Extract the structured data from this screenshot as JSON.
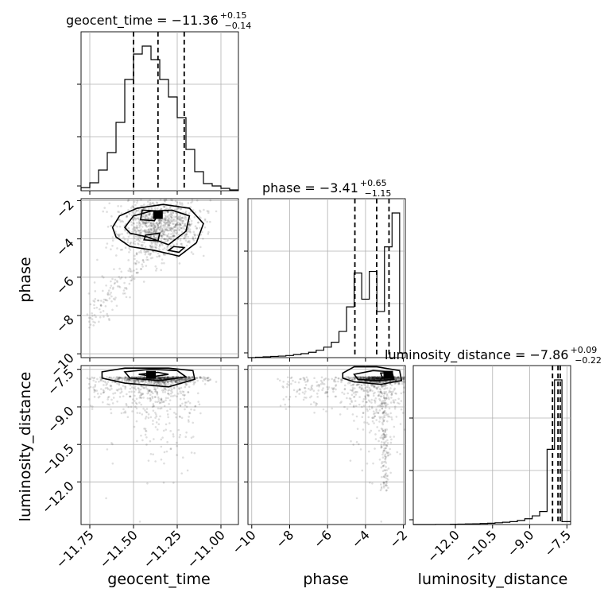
{
  "titles": {
    "geocent_time": {
      "name": "geocent_time",
      "median": "−11.36",
      "plus": "+0.15",
      "minus": "−0.14"
    },
    "phase": {
      "name": "phase",
      "median": "−3.41",
      "plus": "+0.65",
      "minus": "−1.15"
    },
    "luminosity_distance": {
      "name": "luminosity_distance",
      "median": "−7.86",
      "plus": "+0.09",
      "minus": "−0.22"
    }
  },
  "axis_labels": {
    "x_geocent_time": "geocent_time",
    "x_phase": "phase",
    "x_luminosity_distance": "luminosity_distance",
    "y_phase": "phase",
    "y_luminosity_distance": "luminosity_distance"
  },
  "chart_data": {
    "type": "corner",
    "parameters": [
      "geocent_time",
      "phase",
      "luminosity_distance"
    ],
    "ranges": {
      "geocent_time": [
        -11.8,
        -10.9
      ],
      "phase": [
        -10.2,
        -1.9
      ],
      "luminosity_distance": [
        -13.7,
        -7.35
      ]
    },
    "ticks": {
      "geocent_time": {
        "values": [
          -11.75,
          -11.5,
          -11.25,
          -11.0
        ],
        "labels": [
          "−11.75",
          "−11.50",
          "−11.25",
          "−11.00"
        ]
      },
      "phase": {
        "values": [
          -10,
          -8,
          -6,
          -4,
          -2
        ],
        "labels": [
          "−10",
          "−8",
          "−6",
          "−4",
          "−2"
        ]
      },
      "luminosity_distance": {
        "values": [
          -12.0,
          -10.5,
          -9.0,
          -7.5
        ],
        "labels": [
          "−12.0",
          "−10.5",
          "−9.0",
          "−7.5"
        ]
      }
    },
    "histograms": {
      "geocent_time": {
        "edges": [
          -11.8,
          -11.75,
          -11.7,
          -11.65,
          -11.6,
          -11.55,
          -11.5,
          -11.45,
          -11.4,
          -11.35,
          -11.3,
          -11.25,
          -11.2,
          -11.15,
          -11.1,
          -11.05,
          -11.0,
          -10.95,
          -10.9
        ],
        "counts": [
          4,
          10,
          26,
          48,
          86,
          140,
          172,
          182,
          165,
          140,
          118,
          92,
          52,
          24,
          9,
          6,
          3,
          1
        ]
      },
      "phase": {
        "edges": [
          -10.2,
          -9.8,
          -9.4,
          -9.0,
          -8.6,
          -8.2,
          -7.8,
          -7.4,
          -7.0,
          -6.6,
          -6.2,
          -5.8,
          -5.4,
          -5.0,
          -4.6,
          -4.2,
          -3.8,
          -3.4,
          -3.0,
          -2.6,
          -2.2,
          -1.9
        ],
        "counts": [
          0,
          3,
          5,
          8,
          10,
          14,
          20,
          26,
          35,
          48,
          68,
          100,
          170,
          330,
          550,
          380,
          560,
          300,
          720,
          940,
          30
        ]
      },
      "luminosity_distance": {
        "edges": [
          -13.7,
          -13.4,
          -13.1,
          -12.8,
          -12.5,
          -12.2,
          -11.9,
          -11.6,
          -11.3,
          -11.0,
          -10.7,
          -10.4,
          -10.1,
          -9.8,
          -9.5,
          -9.2,
          -8.9,
          -8.6,
          -8.3,
          -8.0,
          -7.7,
          -7.35
        ],
        "counts": [
          0,
          0,
          0,
          1,
          1,
          2,
          3,
          4,
          5,
          7,
          9,
          12,
          16,
          20,
          28,
          40,
          60,
          90,
          520,
          1000,
          20
        ]
      }
    },
    "quantiles": {
      "geocent_time": [
        -11.5,
        -11.36,
        -11.21
      ],
      "phase": [
        -4.56,
        -3.41,
        -2.76
      ],
      "luminosity_distance": [
        -8.08,
        -7.86,
        -7.77
      ]
    },
    "contours": {
      "phase_vs_geocent_time": {
        "level1": [
          [
            -11.62,
            -3.4
          ],
          [
            -11.58,
            -2.8
          ],
          [
            -11.48,
            -2.4
          ],
          [
            -11.33,
            -2.2
          ],
          [
            -11.18,
            -2.4
          ],
          [
            -11.1,
            -3.2
          ],
          [
            -11.14,
            -4.2
          ],
          [
            -11.24,
            -4.9
          ],
          [
            -11.38,
            -4.6
          ],
          [
            -11.52,
            -4.4
          ],
          [
            -11.6,
            -3.9
          ]
        ],
        "level2": [
          [
            -11.55,
            -3.4
          ],
          [
            -11.5,
            -2.8
          ],
          [
            -11.4,
            -2.55
          ],
          [
            -11.28,
            -2.5
          ],
          [
            -11.18,
            -2.8
          ],
          [
            -11.2,
            -3.6
          ],
          [
            -11.3,
            -4.3
          ],
          [
            -11.42,
            -3.9
          ],
          [
            -11.52,
            -3.7
          ]
        ],
        "level3a": [
          [
            -11.45,
            -2.5
          ],
          [
            -11.35,
            -2.55
          ],
          [
            -11.38,
            -3.05
          ],
          [
            -11.46,
            -3.0
          ]
        ],
        "level3b": [
          [
            -11.43,
            -3.8
          ],
          [
            -11.35,
            -3.7
          ],
          [
            -11.36,
            -4.1
          ],
          [
            -11.44,
            -4.05
          ]
        ],
        "level3c": [
          [
            -11.27,
            -4.4
          ],
          [
            -11.21,
            -4.45
          ],
          [
            -11.24,
            -4.7
          ],
          [
            -11.3,
            -4.6
          ]
        ],
        "peak": [
          -11.36,
          -2.75
        ]
      },
      "luminosity_distance_vs_geocent_time": {
        "level1": [
          [
            -11.68,
            -7.6
          ],
          [
            -11.55,
            -7.45
          ],
          [
            -11.3,
            -7.45
          ],
          [
            -11.16,
            -7.55
          ],
          [
            -11.15,
            -7.9
          ],
          [
            -11.3,
            -8.2
          ],
          [
            -11.55,
            -8.05
          ],
          [
            -11.68,
            -7.85
          ]
        ],
        "level2": [
          [
            -11.55,
            -7.6
          ],
          [
            -11.4,
            -7.5
          ],
          [
            -11.25,
            -7.55
          ],
          [
            -11.2,
            -7.8
          ],
          [
            -11.35,
            -7.95
          ],
          [
            -11.52,
            -7.85
          ]
        ],
        "level3": [
          [
            -11.47,
            -7.7
          ],
          [
            -11.36,
            -7.62
          ],
          [
            -11.3,
            -7.7
          ],
          [
            -11.38,
            -7.78
          ]
        ],
        "peak": [
          -11.4,
          -7.72
        ]
      },
      "luminosity_distance_vs_phase": {
        "level1": [
          [
            -5.2,
            -7.65
          ],
          [
            -4.6,
            -7.4
          ],
          [
            -3.4,
            -7.4
          ],
          [
            -2.2,
            -7.55
          ],
          [
            -2.1,
            -7.95
          ],
          [
            -3.2,
            -8.1
          ],
          [
            -4.6,
            -8.0
          ],
          [
            -5.2,
            -7.85
          ]
        ],
        "level2": [
          [
            -4.6,
            -7.7
          ],
          [
            -3.6,
            -7.55
          ],
          [
            -2.6,
            -7.6
          ],
          [
            -2.5,
            -7.9
          ],
          [
            -3.4,
            -7.95
          ],
          [
            -4.4,
            -7.9
          ]
        ],
        "level3": [
          [
            -3.2,
            -7.65
          ],
          [
            -2.7,
            -7.62
          ],
          [
            -2.6,
            -7.85
          ],
          [
            -3.1,
            -7.85
          ]
        ],
        "peak": [
          -2.8,
          -7.72
        ]
      }
    }
  }
}
